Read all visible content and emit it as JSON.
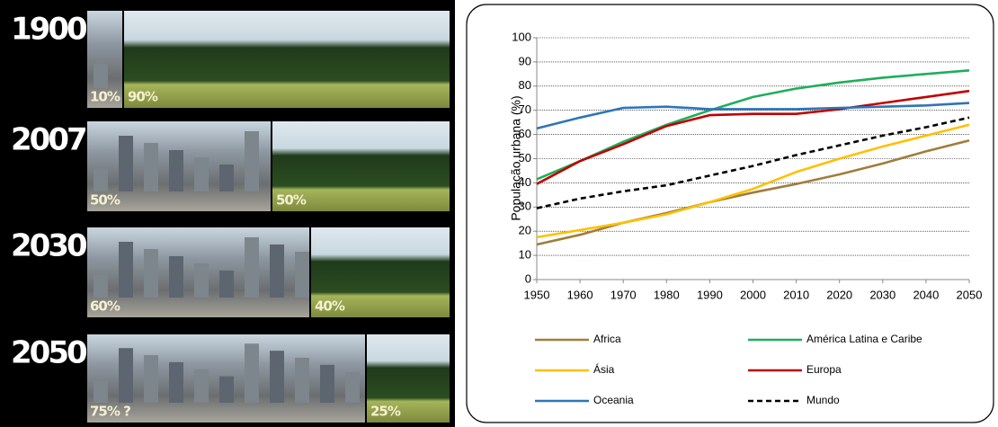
{
  "infographic": {
    "rows": [
      {
        "year": "1900",
        "urban": "10%",
        "rural": "90%"
      },
      {
        "year": "2007",
        "urban": "50%",
        "rural": "50%"
      },
      {
        "year": "2030",
        "urban": "60%",
        "rural": "40%"
      },
      {
        "year": "2050",
        "urban": "75% ?",
        "rural": "25%"
      }
    ]
  },
  "chart_data": {
    "type": "line",
    "y_label": "População urbana (%)",
    "x": [
      1950,
      1960,
      1970,
      1980,
      1990,
      2000,
      2010,
      2020,
      2030,
      2040,
      2050
    ],
    "xlim": [
      1950,
      2050
    ],
    "xticks": [
      1950,
      1960,
      1970,
      1980,
      1990,
      2000,
      2010,
      2020,
      2030,
      2040,
      2050
    ],
    "ylim": [
      0,
      100
    ],
    "yticks": [
      0,
      10,
      20,
      30,
      40,
      50,
      60,
      70,
      80,
      90,
      100
    ],
    "grid": true,
    "legend": "bottom",
    "series": [
      {
        "name": "Africa",
        "color": "#a07d3a",
        "line_style": "solid",
        "values": [
          14.5,
          18.5,
          23.5,
          27.5,
          32,
          36,
          39.5,
          43.5,
          48,
          53,
          57.5
        ]
      },
      {
        "name": "América Latina e Caribe",
        "color": "#1fae5c",
        "line_style": "solid",
        "values": [
          41.5,
          49,
          57,
          64,
          70,
          75.5,
          79,
          81.5,
          83.5,
          85,
          86.5
        ]
      },
      {
        "name": "Ásia",
        "color": "#ffc000",
        "line_style": "solid",
        "values": [
          17.5,
          20.5,
          23.5,
          27,
          32,
          37.5,
          44.5,
          50,
          55,
          59.5,
          64
        ]
      },
      {
        "name": "Europa",
        "color": "#c00000",
        "line_style": "solid",
        "values": [
          39.5,
          49,
          56,
          63.5,
          68,
          68.5,
          68.5,
          70.5,
          73,
          75.5,
          78
        ]
      },
      {
        "name": "Oceania",
        "color": "#2e75b6",
        "line_style": "solid",
        "values": [
          62.5,
          67,
          71,
          71.5,
          70.5,
          70.5,
          70.5,
          71,
          71.5,
          72,
          73
        ]
      },
      {
        "name": "Mundo",
        "color": "#000000",
        "line_style": "dashed",
        "values": [
          29.5,
          33.5,
          36.5,
          39,
          43,
          47,
          51.5,
          55.5,
          59.5,
          63,
          67
        ]
      }
    ]
  }
}
